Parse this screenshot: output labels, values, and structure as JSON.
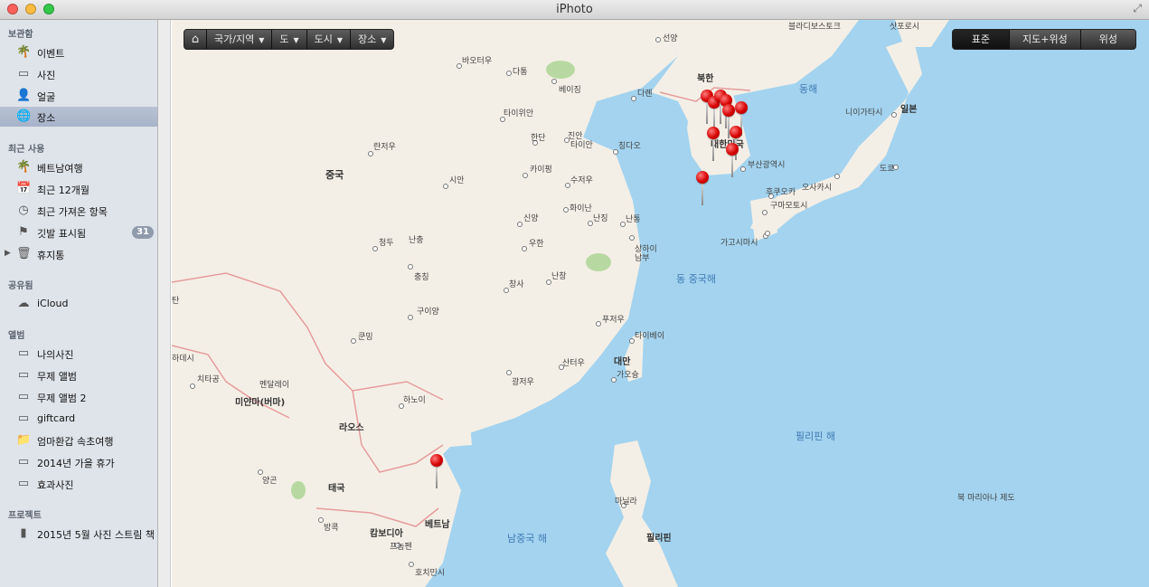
{
  "window": {
    "title": "iPhoto"
  },
  "sidebar": {
    "library_header": "보관함",
    "library": [
      {
        "label": "이벤트",
        "icon": "palm-tree-icon"
      },
      {
        "label": "사진",
        "icon": "photo-icon"
      },
      {
        "label": "얼굴",
        "icon": "face-icon"
      },
      {
        "label": "장소",
        "icon": "globe-icon"
      }
    ],
    "recent_header": "최근 사용",
    "recent": [
      {
        "label": "베트남여행",
        "icon": "palm-tree-icon"
      },
      {
        "label": "최근 12개월",
        "icon": "calendar-icon"
      },
      {
        "label": "최근 가져온 항목",
        "icon": "import-icon"
      },
      {
        "label": "깃발 표시됨",
        "icon": "flag-icon",
        "badge": "31"
      },
      {
        "label": "휴지통",
        "icon": "trash-icon"
      }
    ],
    "shared_header": "공유됨",
    "shared": [
      {
        "label": "iCloud",
        "icon": "cloud-icon"
      }
    ],
    "albums_header": "앨범",
    "albums": [
      {
        "label": "나의사진"
      },
      {
        "label": "무제 앨범"
      },
      {
        "label": "무제 앨범 2"
      },
      {
        "label": "giftcard"
      },
      {
        "label": "엄마환갑 속초여행"
      },
      {
        "label": "2014년 가을 휴가"
      },
      {
        "label": "효과사진"
      }
    ],
    "projects_header": "프로젝트",
    "projects": [
      {
        "label": "2015년 5월 사진 스트림 책",
        "icon": "book-icon"
      }
    ]
  },
  "map": {
    "breadcrumbs": [
      {
        "label": "국가/지역"
      },
      {
        "label": "도"
      },
      {
        "label": "도시"
      },
      {
        "label": "장소"
      }
    ],
    "map_types": {
      "standard": "표준",
      "hybrid": "지도+위성",
      "satellite": "위성"
    },
    "labels": {
      "blagoveshchensk": "블라디보스토크",
      "saporo": "삿포로시",
      "seonyang": "선양",
      "baotou": "바오터우",
      "datong": "다통",
      "beijing": "베이징",
      "dalian": "다롄",
      "north_korea": "북한",
      "east_sea": "동해",
      "niigata": "니이가타시",
      "japan": "일본",
      "taiyuan": "타이위안",
      "handan": "한단",
      "jinan": "진안",
      "taian": "타이안",
      "qingdao": "칭다오",
      "lanzhou": "란저우",
      "china": "중국",
      "kaifeng": "카이펑",
      "xuzhou": "수저우",
      "xian": "시안",
      "south_korea": "대한민국",
      "busan": "부산광역시",
      "fukuoka": "후쿠오카",
      "osaka": "오사카시",
      "tokyo": "도쿄",
      "kumamoto": "구마모토시",
      "hefei": "화이난",
      "nanjing": "난징",
      "nantong": "난통",
      "xinyang": "신양",
      "wuhan": "우한",
      "shanghai": "상하이",
      "shanghai2": "남부",
      "kagoshima": "가고시마시",
      "chengdu": "청두",
      "chongqing": "난충",
      "chongqing2": "충칭",
      "east_china_sea": "동 중국해",
      "changsha": "창사",
      "nanchang": "난창",
      "guiyang": "구이양",
      "kunming": "쿤밍",
      "fuzhou": "푸저우",
      "taipei": "타이베이",
      "taiwan": "대만",
      "kaohsiung": "가오슝",
      "shantou": "산터우",
      "guangzhou": "광저우",
      "mandalay": "멘달레이",
      "myanmar": "미얀마(버마)",
      "chittagong": "치타공",
      "dhaka": "하데시",
      "hanoi": "하노이",
      "laos": "라오스",
      "philippine_sea": "필리핀 해",
      "yangon": "양곤",
      "thailand": "태국",
      "bangkok": "방콕",
      "cambodia": "캄보디아",
      "phnompenh": "프놈펜",
      "hochiminh": "호치민시",
      "vietnam": "베트남",
      "south_china_sea": "남중국 해",
      "manila": "마닐라",
      "philippines": "필리핀",
      "mariana": "북 마리아나 제도",
      "bhutan": "탄"
    },
    "pin_color": "#d60000"
  }
}
